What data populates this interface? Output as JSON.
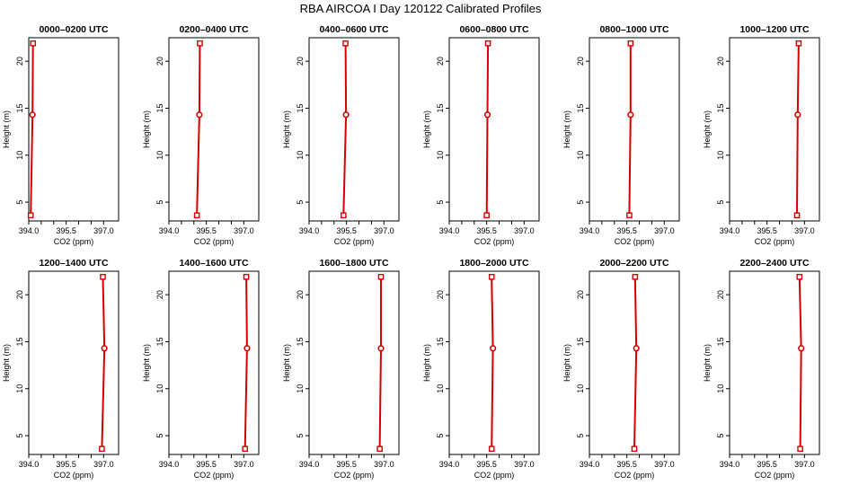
{
  "title": "RBA AIRCOA I  Day 120122  Calibrated Profiles",
  "colors": {
    "profile": "#d40000",
    "axis": "#000000"
  },
  "chart_data": [
    {
      "type": "line",
      "title": "0000–0200 UTC",
      "xlabel": "CO2 (ppm)",
      "ylabel": "Height (m)",
      "xlim": [
        394.0,
        397.6
      ],
      "ylim": [
        3.0,
        22.5
      ],
      "xticks": [
        "394.0",
        "395.5",
        "397.0"
      ],
      "yticks": [
        "5",
        "10",
        "15",
        "20"
      ],
      "points": [
        {
          "x": 394.08,
          "y": 3.6
        },
        {
          "x": 394.15,
          "y": 14.3
        },
        {
          "x": 394.17,
          "y": 21.9
        }
      ]
    },
    {
      "type": "line",
      "title": "0200–0400 UTC",
      "xlabel": "CO2 (ppm)",
      "ylabel": "Height (m)",
      "xlim": [
        394.0,
        397.6
      ],
      "ylim": [
        3.0,
        22.5
      ],
      "xticks": [
        "394.0",
        "395.5",
        "397.0"
      ],
      "yticks": [
        "5",
        "10",
        "15",
        "20"
      ],
      "points": [
        {
          "x": 395.12,
          "y": 3.6
        },
        {
          "x": 395.22,
          "y": 14.3
        },
        {
          "x": 395.24,
          "y": 21.9
        }
      ]
    },
    {
      "type": "line",
      "title": "0400–0600 UTC",
      "xlabel": "CO2 (ppm)",
      "ylabel": "Height (m)",
      "xlim": [
        394.0,
        397.6
      ],
      "ylim": [
        3.0,
        22.5
      ],
      "xticks": [
        "394.0",
        "395.5",
        "397.0"
      ],
      "yticks": [
        "5",
        "10",
        "15",
        "20"
      ],
      "points": [
        {
          "x": 395.38,
          "y": 3.6
        },
        {
          "x": 395.48,
          "y": 14.3
        },
        {
          "x": 395.46,
          "y": 21.9
        }
      ]
    },
    {
      "type": "line",
      "title": "0600–0800 UTC",
      "xlabel": "CO2 (ppm)",
      "ylabel": "Height (m)",
      "xlim": [
        394.0,
        397.6
      ],
      "ylim": [
        3.0,
        22.5
      ],
      "xticks": [
        "394.0",
        "395.5",
        "397.0"
      ],
      "yticks": [
        "5",
        "10",
        "15",
        "20"
      ],
      "points": [
        {
          "x": 395.5,
          "y": 3.6
        },
        {
          "x": 395.53,
          "y": 14.3
        },
        {
          "x": 395.55,
          "y": 21.9
        }
      ]
    },
    {
      "type": "line",
      "title": "0800–1000 UTC",
      "xlabel": "CO2 (ppm)",
      "ylabel": "Height (m)",
      "xlim": [
        394.0,
        397.6
      ],
      "ylim": [
        3.0,
        22.5
      ],
      "xticks": [
        "394.0",
        "395.5",
        "397.0"
      ],
      "yticks": [
        "5",
        "10",
        "15",
        "20"
      ],
      "points": [
        {
          "x": 395.6,
          "y": 3.6
        },
        {
          "x": 395.65,
          "y": 14.3
        },
        {
          "x": 395.65,
          "y": 21.9
        }
      ]
    },
    {
      "type": "line",
      "title": "1000–1200 UTC",
      "xlabel": "CO2 (ppm)",
      "ylabel": "Height (m)",
      "xlim": [
        394.0,
        397.6
      ],
      "ylim": [
        3.0,
        22.5
      ],
      "xticks": [
        "394.0",
        "395.5",
        "397.0"
      ],
      "yticks": [
        "5",
        "10",
        "15",
        "20"
      ],
      "points": [
        {
          "x": 396.7,
          "y": 3.6
        },
        {
          "x": 396.73,
          "y": 14.3
        },
        {
          "x": 396.77,
          "y": 21.9
        }
      ]
    },
    {
      "type": "line",
      "title": "1200–1400 UTC",
      "xlabel": "CO2 (ppm)",
      "ylabel": "Height (m)",
      "xlim": [
        394.0,
        397.6
      ],
      "ylim": [
        3.0,
        22.5
      ],
      "xticks": [
        "394.0",
        "395.5",
        "397.0"
      ],
      "yticks": [
        "5",
        "10",
        "15",
        "20"
      ],
      "points": [
        {
          "x": 396.93,
          "y": 3.6
        },
        {
          "x": 397.03,
          "y": 14.3
        },
        {
          "x": 396.97,
          "y": 21.9
        }
      ]
    },
    {
      "type": "line",
      "title": "1400–1600 UTC",
      "xlabel": "CO2 (ppm)",
      "ylabel": "Height (m)",
      "xlim": [
        394.0,
        397.6
      ],
      "ylim": [
        3.0,
        22.5
      ],
      "xticks": [
        "394.0",
        "395.5",
        "397.0"
      ],
      "yticks": [
        "5",
        "10",
        "15",
        "20"
      ],
      "points": [
        {
          "x": 397.05,
          "y": 3.6
        },
        {
          "x": 397.13,
          "y": 14.3
        },
        {
          "x": 397.1,
          "y": 21.9
        }
      ]
    },
    {
      "type": "line",
      "title": "1600–1800 UTC",
      "xlabel": "CO2 (ppm)",
      "ylabel": "Height (m)",
      "xlim": [
        394.0,
        397.6
      ],
      "ylim": [
        3.0,
        22.5
      ],
      "xticks": [
        "394.0",
        "395.5",
        "397.0"
      ],
      "yticks": [
        "5",
        "10",
        "15",
        "20"
      ],
      "points": [
        {
          "x": 396.83,
          "y": 3.6
        },
        {
          "x": 396.88,
          "y": 14.3
        },
        {
          "x": 396.88,
          "y": 21.9
        }
      ]
    },
    {
      "type": "line",
      "title": "1800–2000 UTC",
      "xlabel": "CO2 (ppm)",
      "ylabel": "Height (m)",
      "xlim": [
        394.0,
        397.6
      ],
      "ylim": [
        3.0,
        22.5
      ],
      "xticks": [
        "394.0",
        "395.5",
        "397.0"
      ],
      "yticks": [
        "5",
        "10",
        "15",
        "20"
      ],
      "points": [
        {
          "x": 395.7,
          "y": 3.6
        },
        {
          "x": 395.75,
          "y": 14.3
        },
        {
          "x": 395.7,
          "y": 21.9
        }
      ]
    },
    {
      "type": "line",
      "title": "2000–2200 UTC",
      "xlabel": "CO2 (ppm)",
      "ylabel": "Height (m)",
      "xlim": [
        394.0,
        397.6
      ],
      "ylim": [
        3.0,
        22.5
      ],
      "xticks": [
        "394.0",
        "395.5",
        "397.0"
      ],
      "yticks": [
        "5",
        "10",
        "15",
        "20"
      ],
      "points": [
        {
          "x": 395.8,
          "y": 3.6
        },
        {
          "x": 395.88,
          "y": 14.3
        },
        {
          "x": 395.83,
          "y": 21.9
        }
      ]
    },
    {
      "type": "line",
      "title": "2200–2400 UTC",
      "xlabel": "CO2 (ppm)",
      "ylabel": "Height (m)",
      "xlim": [
        394.0,
        397.6
      ],
      "ylim": [
        3.0,
        22.5
      ],
      "xticks": [
        "394.0",
        "395.5",
        "397.0"
      ],
      "yticks": [
        "5",
        "10",
        "15",
        "20"
      ],
      "points": [
        {
          "x": 396.83,
          "y": 3.6
        },
        {
          "x": 396.87,
          "y": 14.3
        },
        {
          "x": 396.8,
          "y": 21.9
        }
      ]
    }
  ]
}
